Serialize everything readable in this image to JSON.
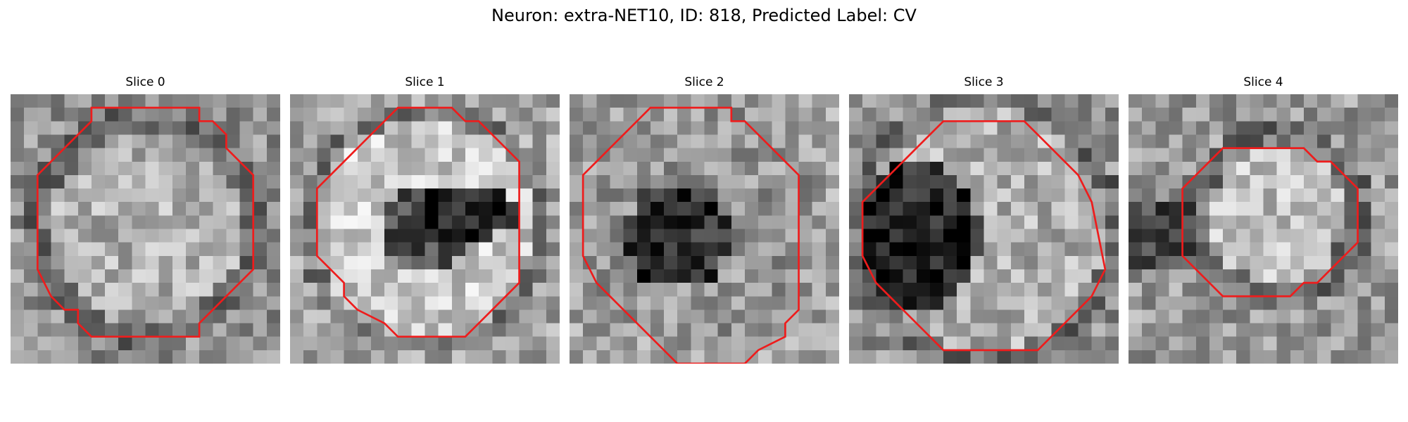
{
  "figure": {
    "title": "Neuron: extra-NET10, ID: 818, Predicted Label: CV",
    "contour_color": "#ee1c1c"
  },
  "panels": [
    {
      "title": "Slice 0",
      "seed": 11,
      "pattern": "uniform-textured",
      "contour": [
        [
          6,
          1
        ],
        [
          14,
          1
        ],
        [
          14,
          2
        ],
        [
          15,
          2
        ],
        [
          16,
          3
        ],
        [
          16,
          4
        ],
        [
          18,
          6
        ],
        [
          18,
          13
        ],
        [
          16,
          15
        ],
        [
          15,
          16
        ],
        [
          14,
          17
        ],
        [
          14,
          18
        ],
        [
          6,
          18
        ],
        [
          5,
          17
        ],
        [
          5,
          16
        ],
        [
          4,
          16
        ],
        [
          3,
          15
        ],
        [
          2,
          13
        ],
        [
          2,
          6
        ],
        [
          4,
          4
        ],
        [
          5,
          3
        ],
        [
          6,
          2
        ]
      ]
    },
    {
      "title": "Slice 1",
      "seed": 23,
      "pattern": "ring-with-dark-center",
      "contour": [
        [
          8,
          1
        ],
        [
          12,
          1
        ],
        [
          13,
          2
        ],
        [
          14,
          2
        ],
        [
          15,
          3
        ],
        [
          16,
          4
        ],
        [
          17,
          5
        ],
        [
          17,
          14
        ],
        [
          16,
          15
        ],
        [
          15,
          16
        ],
        [
          14,
          17
        ],
        [
          13,
          18
        ],
        [
          8,
          18
        ],
        [
          7,
          17
        ],
        [
          5,
          16
        ],
        [
          4,
          15
        ],
        [
          4,
          14
        ],
        [
          3,
          13
        ],
        [
          2,
          12
        ],
        [
          2,
          7
        ],
        [
          4,
          5
        ],
        [
          5,
          4
        ],
        [
          6,
          3
        ]
      ]
    },
    {
      "title": "Slice 2",
      "seed": 37,
      "pattern": "dark-blob-center",
      "contour": [
        [
          6,
          1
        ],
        [
          12,
          1
        ],
        [
          12,
          2
        ],
        [
          13,
          2
        ],
        [
          14,
          3
        ],
        [
          15,
          4
        ],
        [
          16,
          5
        ],
        [
          17,
          6
        ],
        [
          17,
          16
        ],
        [
          16,
          17
        ],
        [
          16,
          18
        ],
        [
          14,
          19
        ],
        [
          13,
          20
        ],
        [
          8,
          20
        ],
        [
          7,
          19
        ],
        [
          6,
          18
        ],
        [
          5,
          17
        ],
        [
          4,
          16
        ],
        [
          3,
          15
        ],
        [
          2,
          14
        ],
        [
          1,
          12
        ],
        [
          1,
          6
        ],
        [
          2,
          5
        ],
        [
          3,
          4
        ],
        [
          4,
          3
        ],
        [
          5,
          2
        ]
      ]
    },
    {
      "title": "Slice 3",
      "seed": 51,
      "pattern": "dark-left-lobe",
      "contour": [
        [
          7,
          2
        ],
        [
          13,
          2
        ],
        [
          14,
          3
        ],
        [
          15,
          4
        ],
        [
          16,
          5
        ],
        [
          17,
          6
        ],
        [
          18,
          8
        ],
        [
          19,
          13
        ],
        [
          18,
          15
        ],
        [
          17,
          16
        ],
        [
          16,
          17
        ],
        [
          15,
          18
        ],
        [
          14,
          19
        ],
        [
          7,
          19
        ],
        [
          6,
          18
        ],
        [
          5,
          17
        ],
        [
          4,
          16
        ],
        [
          3,
          15
        ],
        [
          2,
          14
        ],
        [
          1,
          12
        ],
        [
          1,
          8
        ],
        [
          3,
          6
        ],
        [
          4,
          5
        ],
        [
          5,
          4
        ],
        [
          6,
          3
        ]
      ]
    },
    {
      "title": "Slice 4",
      "seed": 67,
      "pattern": "small-bright-cell",
      "contour": [
        [
          7,
          4
        ],
        [
          13,
          4
        ],
        [
          14,
          5
        ],
        [
          15,
          5
        ],
        [
          16,
          6
        ],
        [
          17,
          7
        ],
        [
          17,
          11
        ],
        [
          16,
          12
        ],
        [
          15,
          13
        ],
        [
          14,
          14
        ],
        [
          13,
          14
        ],
        [
          12,
          15
        ],
        [
          7,
          15
        ],
        [
          6,
          14
        ],
        [
          5,
          13
        ],
        [
          4,
          12
        ],
        [
          4,
          7
        ],
        [
          5,
          6
        ],
        [
          6,
          5
        ]
      ]
    }
  ]
}
